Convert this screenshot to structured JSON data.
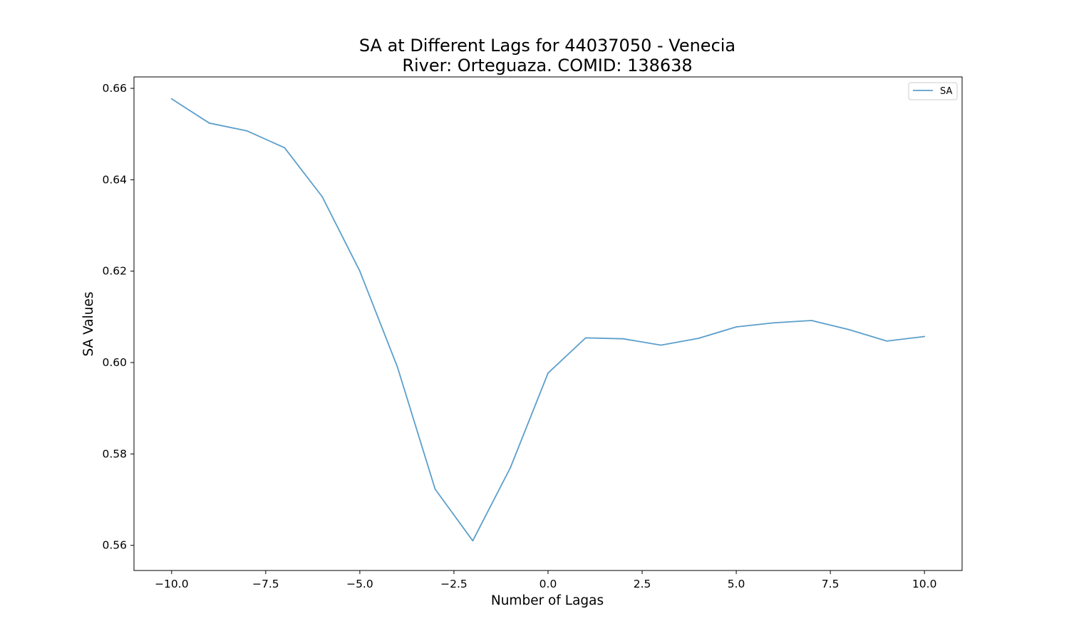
{
  "chart_data": {
    "type": "line",
    "title": "SA at Different Lags for 44037050 - Venecia",
    "subtitle": "River: Orteguaza. COMID: 138638",
    "xlabel": "Number of Lagas",
    "ylabel": "SA Values",
    "xlim": [
      -11,
      11
    ],
    "ylim": [
      0.5545,
      0.6625
    ],
    "x_ticks": [
      -10.0,
      -7.5,
      -5.0,
      -2.5,
      0.0,
      2.5,
      5.0,
      7.5,
      10.0
    ],
    "x_tick_labels": [
      "−10.0",
      "−7.5",
      "−5.0",
      "−2.5",
      "0.0",
      "2.5",
      "5.0",
      "7.5",
      "10.0"
    ],
    "y_ticks": [
      0.56,
      0.58,
      0.6,
      0.62,
      0.64,
      0.66
    ],
    "y_tick_labels": [
      "0.56",
      "0.58",
      "0.60",
      "0.62",
      "0.64",
      "0.66"
    ],
    "grid": false,
    "legend_position": "top-right",
    "series": [
      {
        "name": "SA",
        "color": "#5b9fcb",
        "x": [
          -10,
          -9,
          -8,
          -7,
          -6,
          -5,
          -4,
          -3,
          -2,
          -1,
          0,
          1,
          2,
          3,
          4,
          5,
          6,
          7,
          8,
          9,
          10
        ],
        "y": [
          0.6577,
          0.6524,
          0.6507,
          0.647,
          0.6363,
          0.62,
          0.599,
          0.5723,
          0.561,
          0.577,
          0.5977,
          0.6054,
          0.6052,
          0.6038,
          0.6053,
          0.6078,
          0.6087,
          0.6092,
          0.6072,
          0.6047,
          0.6057
        ]
      }
    ]
  }
}
